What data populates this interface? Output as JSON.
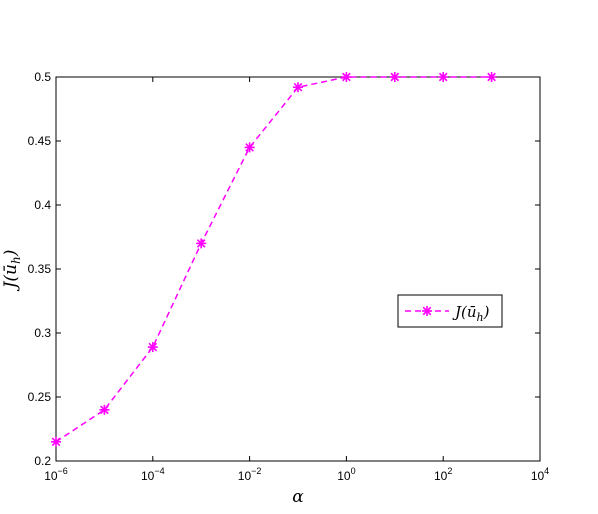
{
  "chart_data": {
    "type": "line",
    "title": "",
    "xlabel": "α",
    "ylabel": "J(ū_h)",
    "xscale": "log",
    "xlim": [
      1e-06,
      10000
    ],
    "ylim": [
      0.2,
      0.5
    ],
    "x_ticks": [
      {
        "value": 1e-06,
        "base": "10",
        "exp": "−6"
      },
      {
        "value": 0.0001,
        "base": "10",
        "exp": "−4"
      },
      {
        "value": 0.01,
        "base": "10",
        "exp": "−2"
      },
      {
        "value": 1,
        "base": "10",
        "exp": "0"
      },
      {
        "value": 100,
        "base": "10",
        "exp": "2"
      },
      {
        "value": 10000,
        "base": "10",
        "exp": "4"
      }
    ],
    "y_ticks": [
      "0.2",
      "0.25",
      "0.3",
      "0.35",
      "0.4",
      "0.45",
      "0.5"
    ],
    "grid": false,
    "legend": {
      "placement": "right",
      "entry": "J(ū_h)"
    },
    "series": [
      {
        "name": "J(ū_h)",
        "color": "#ff00ff",
        "line_style": "dashed",
        "marker": "asterisk",
        "x": [
          1e-06,
          1e-05,
          0.0001,
          0.001,
          0.01,
          0.1,
          1,
          10,
          100,
          1000
        ],
        "y": [
          0.215,
          0.24,
          0.289,
          0.37,
          0.445,
          0.492,
          0.5,
          0.5,
          0.5,
          0.5
        ]
      }
    ]
  }
}
